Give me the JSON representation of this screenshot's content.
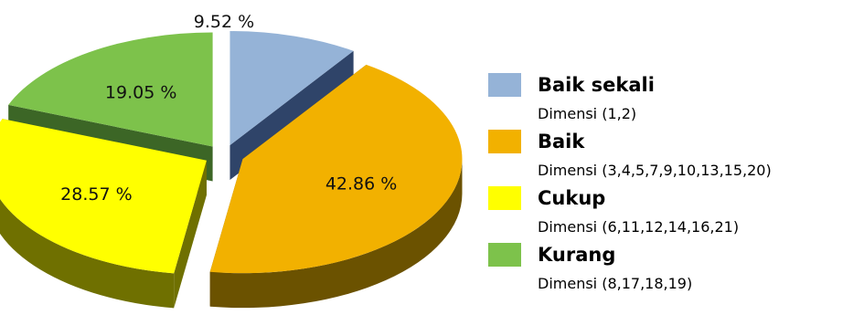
{
  "chart_data": {
    "type": "pie",
    "style": "3d-exploded",
    "slices": [
      {
        "name": "Baik sekali",
        "value": 9.52,
        "label": "9.52 %",
        "description": "Dimensi (1,2)",
        "color": "#95B3D7",
        "dark": "#2F4469"
      },
      {
        "name": "Baik",
        "value": 42.86,
        "label": "42.86 %",
        "description": "Dimensi (3,4,5,7,9,10,13,15,20)",
        "color": "#F2B100",
        "dark": "#6B5200"
      },
      {
        "name": "Cukup",
        "value": 28.57,
        "label": "28.57 %",
        "description": "Dimensi (6,11,12,14,16,21)",
        "color": "#FFFF00",
        "dark": "#6F7000"
      },
      {
        "name": "Kurang",
        "value": 19.05,
        "label": "19.05 %",
        "description": "Dimensi (8,17,18,19)",
        "color": "#7DC24B",
        "dark": "#3C6626"
      }
    ],
    "legend_position": "right"
  }
}
